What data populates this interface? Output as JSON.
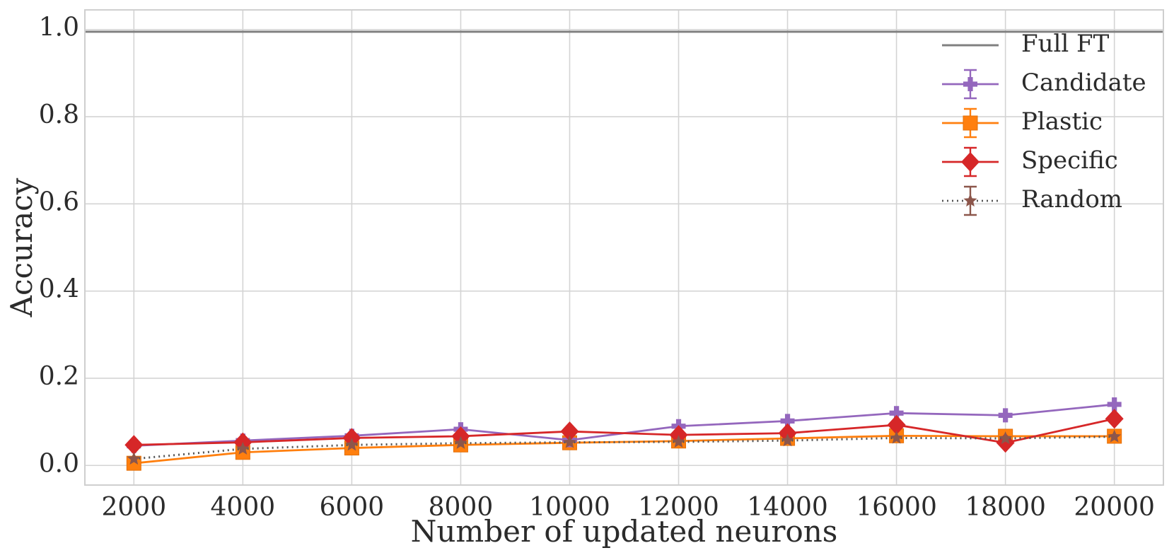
{
  "chart_data": {
    "type": "line",
    "title": "",
    "xlabel": "Number of updated neurons",
    "ylabel": "Accuracy",
    "x": [
      2000,
      4000,
      6000,
      8000,
      10000,
      12000,
      14000,
      16000,
      18000,
      20000
    ],
    "x_ticks": [
      2000,
      4000,
      6000,
      8000,
      10000,
      12000,
      14000,
      16000,
      18000,
      20000
    ],
    "x_tick_labels": [
      "2000",
      "4000",
      "6000",
      "8000",
      "10000",
      "12000",
      "14000",
      "16000",
      "18000",
      "20000"
    ],
    "xlim": [
      1100,
      20900
    ],
    "y_ticks": [
      0.0,
      0.2,
      0.4,
      0.6,
      0.8,
      1.0
    ],
    "y_tick_labels": [
      "0.0",
      "0.2",
      "0.4",
      "0.6",
      "0.8",
      "1.0"
    ],
    "ylim": [
      -0.045,
      1.045
    ],
    "grid": true,
    "legend_position": "top-right",
    "reference_lines": [
      {
        "name": "Full FT",
        "y": 0.995,
        "color": "#808080"
      }
    ],
    "series": [
      {
        "name": "Candidate",
        "color": "#9467bd",
        "marker": "plus",
        "line_style": "solid",
        "values": [
          0.045,
          0.057,
          0.068,
          0.083,
          0.058,
          0.09,
          0.102,
          0.12,
          0.115,
          0.14
        ]
      },
      {
        "name": "Plastic",
        "color": "#ff7f0e",
        "marker": "square",
        "line_style": "solid",
        "values": [
          0.005,
          0.03,
          0.04,
          0.047,
          0.052,
          0.056,
          0.062,
          0.068,
          0.067,
          0.067
        ]
      },
      {
        "name": "Specific",
        "color": "#d62728",
        "marker": "diamond",
        "line_style": "solid",
        "values": [
          0.047,
          0.053,
          0.063,
          0.067,
          0.078,
          0.07,
          0.074,
          0.093,
          0.052,
          0.107
        ]
      },
      {
        "name": "Random",
        "color": "#8c564b",
        "marker": "star",
        "line_style": "dotted",
        "values": [
          0.015,
          0.038,
          0.047,
          0.051,
          0.053,
          0.054,
          0.057,
          0.063,
          0.062,
          0.066
        ]
      }
    ]
  }
}
